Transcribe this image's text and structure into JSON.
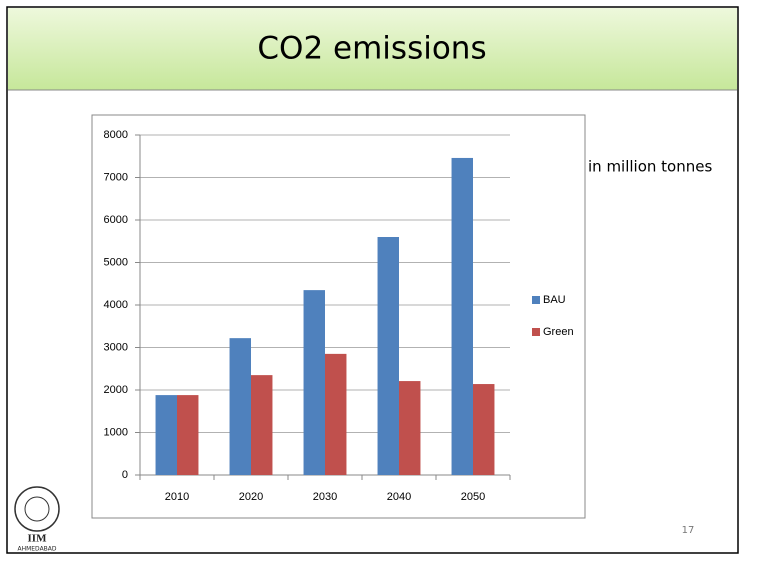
{
  "chart_data": {
    "type": "bar",
    "title": "CO2 emissions",
    "annotation": "in million tonnes",
    "page_number": "17",
    "logo": {
      "name": "IIM",
      "place": "AHMEDABAD"
    },
    "categories": [
      "2010",
      "2020",
      "2030",
      "2040",
      "2050"
    ],
    "series": [
      {
        "name": "BAU",
        "color": "#4f81bd",
        "values": [
          1880,
          3220,
          4350,
          5600,
          7460
        ]
      },
      {
        "name": "Green",
        "color": "#c0504d",
        "values": [
          1880,
          2350,
          2850,
          2210,
          2140
        ]
      }
    ],
    "ylim": [
      0,
      8000
    ],
    "yticks": [
      0,
      1000,
      2000,
      3000,
      4000,
      5000,
      6000,
      7000,
      8000
    ],
    "grid": true,
    "legend": "right"
  }
}
